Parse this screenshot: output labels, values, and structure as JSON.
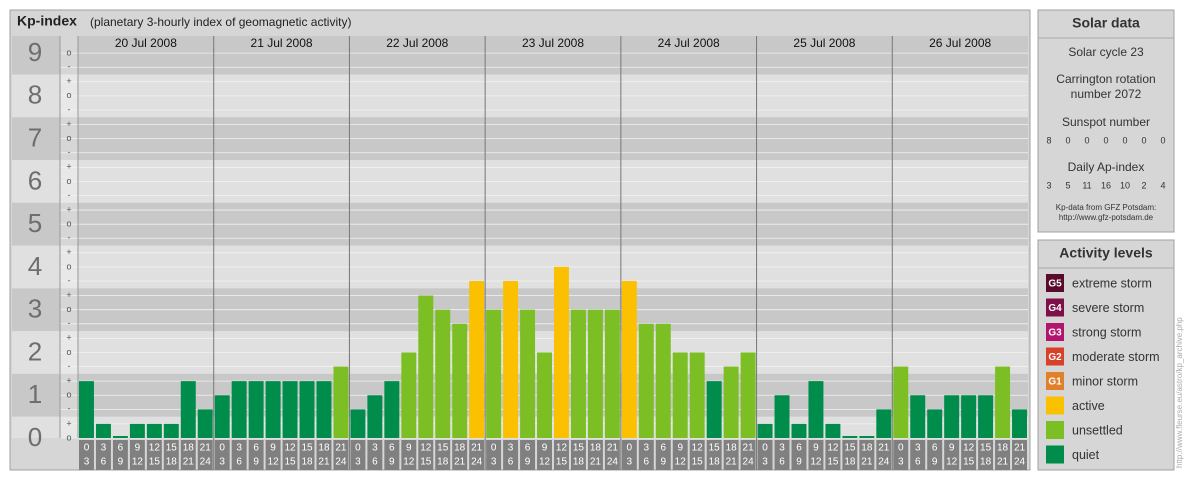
{
  "header": {
    "title": "Kp-index",
    "subtitle": "(planetary 3-hourly index of geomagnetic activity)"
  },
  "chart_data": {
    "type": "bar",
    "days": [
      "20 Jul 2008",
      "21 Jul 2008",
      "22 Jul 2008",
      "23 Jul 2008",
      "24 Jul 2008",
      "25 Jul 2008",
      "26 Jul 2008"
    ],
    "hours": [
      [
        0,
        3
      ],
      [
        3,
        6
      ],
      [
        6,
        9
      ],
      [
        9,
        12
      ],
      [
        12,
        15
      ],
      [
        15,
        18
      ],
      [
        18,
        21
      ],
      [
        21,
        24
      ]
    ],
    "values": [
      1.33,
      0.33,
      0,
      0.33,
      0.33,
      0.33,
      1.33,
      0.67,
      1,
      1.33,
      1.33,
      1.33,
      1.33,
      1.33,
      1.33,
      1.67,
      0.67,
      1,
      1.33,
      2,
      3.33,
      3,
      2.67,
      3.67,
      3,
      3.67,
      3,
      2,
      4,
      3,
      3,
      3,
      3.67,
      2.67,
      2.67,
      2,
      2,
      1.33,
      1.67,
      2,
      0.33,
      1,
      0.33,
      1.33,
      0.33,
      0,
      0,
      0.67,
      1.67,
      1,
      0.67,
      1,
      1,
      1,
      1.67,
      0.67
    ],
    "colors": [
      "#008c4b",
      "#008c4b",
      "#008c4b",
      "#008c4b",
      "#008c4b",
      "#008c4b",
      "#008c4b",
      "#008c4b",
      "#008c4b",
      "#008c4b",
      "#008c4b",
      "#008c4b",
      "#008c4b",
      "#008c4b",
      "#008c4b",
      "#7cbf24",
      "#008c4b",
      "#008c4b",
      "#008c4b",
      "#7cbf24",
      "#7cbf24",
      "#7cbf24",
      "#7cbf24",
      "#fbc100",
      "#7cbf24",
      "#fbc100",
      "#7cbf24",
      "#7cbf24",
      "#fbc100",
      "#7cbf24",
      "#7cbf24",
      "#7cbf24",
      "#fbc100",
      "#7cbf24",
      "#7cbf24",
      "#7cbf24",
      "#7cbf24",
      "#008c4b",
      "#7cbf24",
      "#7cbf24",
      "#008c4b",
      "#008c4b",
      "#008c4b",
      "#008c4b",
      "#008c4b",
      "#008c4b",
      "#008c4b",
      "#008c4b",
      "#7cbf24",
      "#008c4b",
      "#008c4b",
      "#008c4b",
      "#008c4b",
      "#008c4b",
      "#7cbf24",
      "#008c4b"
    ],
    "ylim": [
      0,
      9.4
    ],
    "yticks": [
      0,
      1,
      2,
      3,
      4,
      5,
      6,
      7,
      8,
      9
    ],
    "minor_yticks": [
      {
        "value": 0,
        "label": "o"
      },
      {
        "value": 0.33,
        "label": "+"
      },
      {
        "value": 0.67,
        "label": "-"
      },
      {
        "value": 1,
        "label": "o"
      },
      {
        "value": 1.33,
        "label": "+"
      },
      {
        "value": 1.67,
        "label": "-"
      },
      {
        "value": 2,
        "label": "o"
      },
      {
        "value": 2.33,
        "label": "+"
      },
      {
        "value": 2.67,
        "label": "-"
      },
      {
        "value": 3,
        "label": "o"
      },
      {
        "value": 3.33,
        "label": "+"
      },
      {
        "value": 3.67,
        "label": "-"
      },
      {
        "value": 4,
        "label": "o"
      },
      {
        "value": 4.33,
        "label": "+"
      },
      {
        "value": 4.67,
        "label": "-"
      },
      {
        "value": 5,
        "label": "o"
      },
      {
        "value": 5.33,
        "label": "+"
      },
      {
        "value": 5.67,
        "label": "-"
      },
      {
        "value": 6,
        "label": "o"
      },
      {
        "value": 6.33,
        "label": "+"
      },
      {
        "value": 6.67,
        "label": "-"
      },
      {
        "value": 7,
        "label": "o"
      },
      {
        "value": 7.33,
        "label": "+"
      },
      {
        "value": 7.67,
        "label": "-"
      },
      {
        "value": 8,
        "label": "o"
      },
      {
        "value": 8.33,
        "label": "+"
      },
      {
        "value": 8.67,
        "label": "-"
      },
      {
        "value": 9,
        "label": "o"
      }
    ]
  },
  "solar": {
    "title": "Solar data",
    "cycle": "Solar cycle 23",
    "carrington": [
      "Carrington rotation",
      "number 2072"
    ],
    "sunspot_title": "Sunspot number",
    "sunspot": [
      8,
      0,
      0,
      0,
      0,
      0,
      0
    ],
    "ap_title": "Daily Ap-index",
    "ap": [
      3,
      5,
      11,
      16,
      10,
      2,
      4
    ],
    "source": [
      "Kp-data from GFZ Potsdam:",
      "http://www.gfz-potsdam.de"
    ]
  },
  "levels": {
    "title": "Activity levels",
    "items": [
      {
        "badge": "G5",
        "label": "extreme storm",
        "color": "#5a0a2a"
      },
      {
        "badge": "G4",
        "label": "severe storm",
        "color": "#7d1048"
      },
      {
        "badge": "G3",
        "label": "strong storm",
        "color": "#b4146e"
      },
      {
        "badge": "G2",
        "label": "moderate storm",
        "color": "#d8402a"
      },
      {
        "badge": "G1",
        "label": "minor storm",
        "color": "#e0802a"
      },
      {
        "label": "active",
        "color": "#fbc100"
      },
      {
        "label": "unsettled",
        "color": "#7cbf24"
      },
      {
        "label": "quiet",
        "color": "#008c4b"
      }
    ]
  },
  "side_url": "http://www.fleurse.eu/astro/kp_archive.php"
}
